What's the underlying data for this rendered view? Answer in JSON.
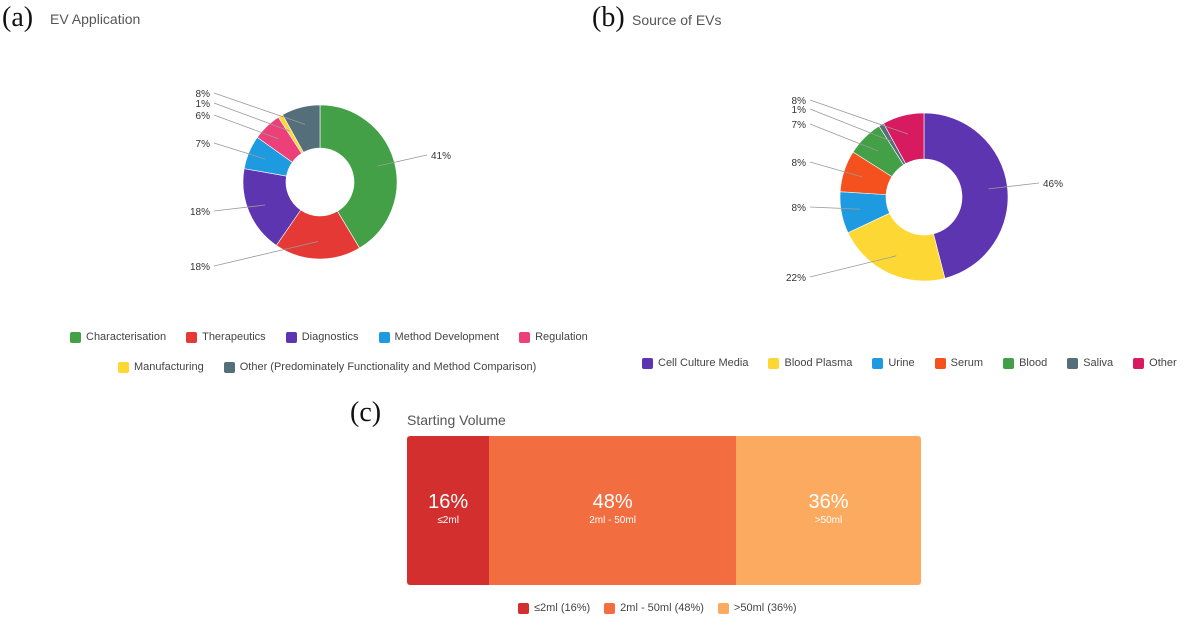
{
  "panels": {
    "a": {
      "letter": "(a)",
      "title": "EV Application"
    },
    "b": {
      "letter": "(b)",
      "title": "Source of EVs"
    },
    "c": {
      "letter": "(c)",
      "title": "Starting Volume"
    }
  },
  "chart_data": [
    {
      "id": "a",
      "type": "pie",
      "title": "EV Application",
      "series": [
        {
          "name": "Characterisation",
          "value": 41,
          "label": "41%",
          "color": "#43a047"
        },
        {
          "name": "Therapeutics",
          "value": 18,
          "label": "18%",
          "color": "#e53935"
        },
        {
          "name": "Diagnostics",
          "value": 18,
          "label": "18%",
          "color": "#5e35b1"
        },
        {
          "name": "Method Development",
          "value": 7,
          "label": "7%",
          "color": "#1e9be0"
        },
        {
          "name": "Regulation",
          "value": 6,
          "label": "6%",
          "color": "#ec407a"
        },
        {
          "name": "Manufacturing",
          "value": 1,
          "label": "1%",
          "color": "#fdd835"
        },
        {
          "name": "Other (Predominately Functionality and Method Comparison)",
          "value": 8,
          "label": "8%",
          "color": "#546e7a"
        }
      ],
      "legend_rows": [
        [
          "Characterisation",
          "Therapeutics",
          "Diagnostics",
          "Method Development",
          "Regulation"
        ],
        [
          "Manufacturing",
          "Other (Predominately Functionality and Method Comparison)"
        ]
      ]
    },
    {
      "id": "b",
      "type": "pie",
      "title": "Source of EVs",
      "series": [
        {
          "name": "Cell Culture Media",
          "value": 46,
          "label": "46%",
          "color": "#5e35b1"
        },
        {
          "name": "Blood Plasma",
          "value": 22,
          "label": "22%",
          "color": "#fdd835"
        },
        {
          "name": "Urine",
          "value": 8,
          "label": "8%",
          "color": "#1e9be0"
        },
        {
          "name": "Serum",
          "value": 8,
          "label": "8%",
          "color": "#f4511e"
        },
        {
          "name": "Blood",
          "value": 7,
          "label": "7%",
          "color": "#43a047"
        },
        {
          "name": "Saliva",
          "value": 1,
          "label": "1%",
          "color": "#546e7a"
        },
        {
          "name": "Other",
          "value": 8,
          "label": "8%",
          "color": "#d81b60"
        }
      ],
      "legend_rows": [
        [
          "Cell Culture Media",
          "Blood Plasma",
          "Urine",
          "Serum",
          "Blood",
          "Saliva",
          "Other"
        ]
      ]
    },
    {
      "id": "c",
      "type": "bar",
      "stacked": true,
      "orientation": "horizontal",
      "title": "Starting Volume",
      "series": [
        {
          "name": "≤2ml",
          "value": 16,
          "label": "16%",
          "legend": "≤2ml (16%)",
          "color": "#d32f2f"
        },
        {
          "name": "2ml - 50ml",
          "value": 48,
          "label": "48%",
          "legend": "2ml - 50ml (48%)",
          "color": "#f26d40"
        },
        {
          "name": ">50ml",
          "value": 36,
          "label": "36%",
          "legend": ">50ml (36%)",
          "color": "#fbaa5f"
        }
      ]
    }
  ]
}
